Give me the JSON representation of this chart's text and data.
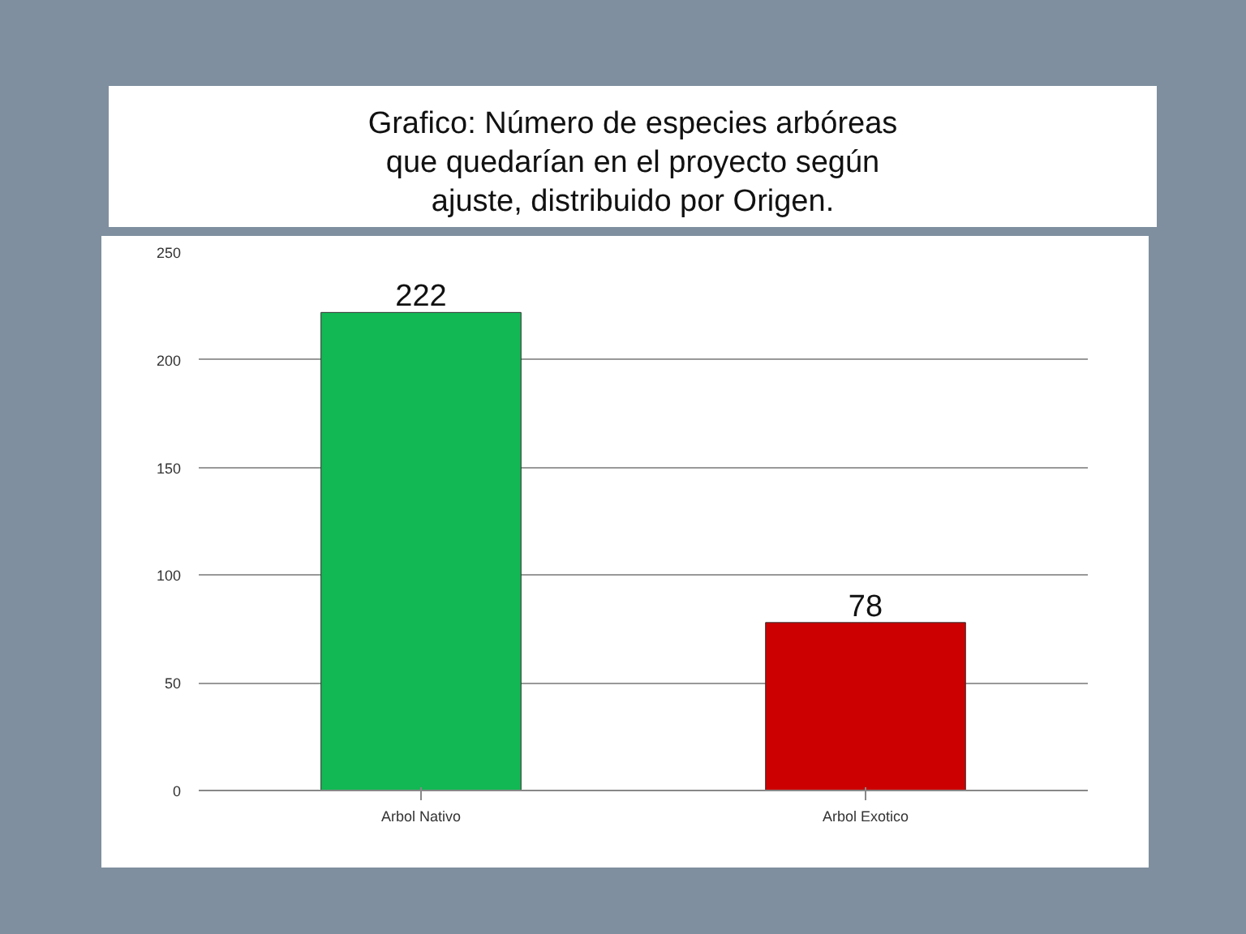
{
  "chart_data": {
    "type": "bar",
    "title": "Grafico: Número de especies arbóreas que quedarían en el proyecto según ajuste, distribuido por Origen.",
    "categories": [
      "Arbol Nativo",
      "Arbol Exotico"
    ],
    "values": [
      222,
      78
    ],
    "colors": [
      "#12b853",
      "#cc0000"
    ],
    "ylim": [
      0,
      250
    ],
    "yticks": [
      0,
      50,
      100,
      150,
      200,
      250
    ],
    "grid": "y",
    "data_labels": true
  }
}
